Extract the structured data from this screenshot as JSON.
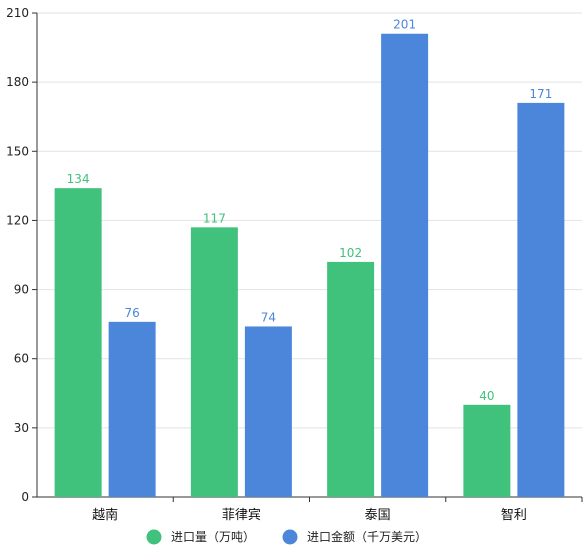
{
  "chart_data": {
    "type": "bar",
    "title": "",
    "xlabel": "",
    "ylabel": "",
    "categories": [
      "越南",
      "菲律宾",
      "泰国",
      "智利"
    ],
    "series": [
      {
        "name": "进口量（万吨）",
        "values": [
          134,
          117,
          102,
          40
        ],
        "color": "#40c27c"
      },
      {
        "name": "进口金额（千万美元）",
        "values": [
          76,
          74,
          201,
          171
        ],
        "color": "#4c86db"
      }
    ],
    "ylim": [
      0,
      210
    ],
    "yticks": [
      0,
      30,
      60,
      90,
      120,
      150,
      180,
      210
    ],
    "grid": true,
    "legend_position": "bottom"
  }
}
